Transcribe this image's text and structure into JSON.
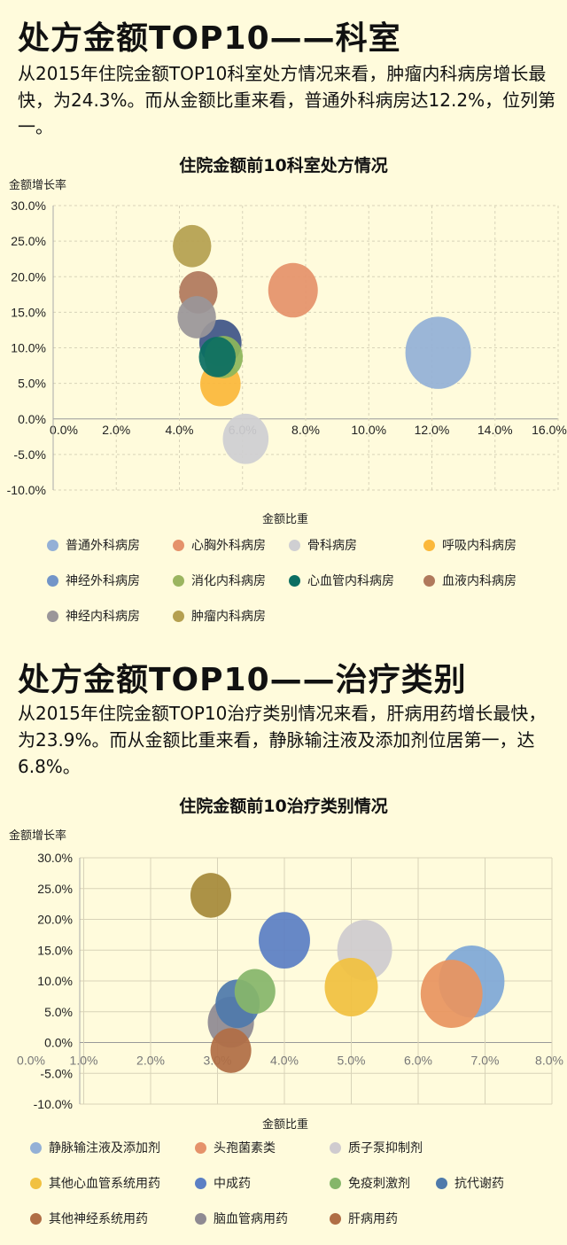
{
  "section1": {
    "title": "处方金额TOP10——科室",
    "paragraph": "从2015年住院金额TOP10科室处方情况来看，肿瘤内科病房增长最快，为24.3%。而从金额比重来看，普通外科病房达12.2%，位列第一。"
  },
  "section2": {
    "title": "处方金额TOP10——治疗类别",
    "paragraph": "从2015年住院金额TOP10治疗类别情况来看，肝病用药增长最快，为23.9%。而从金额比重来看，静脉输注液及添加剂位居第一，达6.8%。"
  },
  "chart_data": [
    {
      "type": "bubble",
      "title": "住院金额前10科室处方情况",
      "xlabel": "金额比重",
      "ylabel": "金额增长率",
      "xlim": [
        0,
        16
      ],
      "ylim": [
        -10,
        30
      ],
      "xticks": [
        "0.0%",
        "2.0%",
        "4.0%",
        "6.0%",
        "8.0%",
        "10.0%",
        "12.0%",
        "14.0%",
        "16.0%"
      ],
      "yticks": [
        "30.0%",
        "25.0%",
        "20.0%",
        "15.0%",
        "10.0%",
        "5.0%",
        "0.0%",
        "-5.0%",
        "-10.0%"
      ],
      "grid": true,
      "legend": "bottom",
      "series": [
        {
          "name": "普通外科病房",
          "x": 12.2,
          "y": 9.3,
          "size": 14,
          "color": "#93b0d6",
          "legend_color": "#93b0d6"
        },
        {
          "name": "心胸外科病房",
          "x": 7.6,
          "y": 18.1,
          "size": 8,
          "color": "#e5926a",
          "legend_color": "#e5926a"
        },
        {
          "name": "骨科病房",
          "x": 6.1,
          "y": -2.8,
          "size": 6.8,
          "color": "#cfcfd2",
          "legend_color": "#cfcfd2"
        },
        {
          "name": "呼吸内科病房",
          "x": 5.3,
          "y": 4.9,
          "size": 5.3,
          "color": "#fbb83a",
          "legend_color": "#fbb83a"
        },
        {
          "name": "神经外科病房",
          "x": 5.3,
          "y": 10.7,
          "size": 5.8,
          "color": "#3f5588",
          "legend_color": "#7295c8"
        },
        {
          "name": "消化内科病房",
          "x": 5.4,
          "y": 8.7,
          "size": 4.8,
          "color": "#8db65a",
          "legend_color": "#9bb560"
        },
        {
          "name": "心血管内科病房",
          "x": 5.2,
          "y": 8.7,
          "size": 4.4,
          "color": "#0b6e62",
          "legend_color": "#0b6e62"
        },
        {
          "name": "血液内科病房",
          "x": 4.6,
          "y": 17.8,
          "size": 4.8,
          "color": "#b0795c",
          "legend_color": "#b0795c"
        },
        {
          "name": "神经内科病房",
          "x": 4.55,
          "y": 14.3,
          "size": 4.8,
          "color": "#9a9699",
          "legend_color": "#9a9699"
        },
        {
          "name": "肿瘤内科病房",
          "x": 4.4,
          "y": 24.3,
          "size": 4.8,
          "color": "#b5a050",
          "legend_color": "#b5a050"
        }
      ]
    },
    {
      "type": "bubble",
      "title": "住院金额前10治疗类别情况",
      "xlabel": "金额比重",
      "ylabel": "金额增长率",
      "xlim": [
        0,
        8
      ],
      "ylim": [
        -10,
        30
      ],
      "xticks": [
        "0.0%",
        "1.0%",
        "2.0%",
        "3.0%",
        "4.0%",
        "5.0%",
        "6.0%",
        "7.0%",
        "8.0%"
      ],
      "yticks": [
        "30.0%",
        "25.0%",
        "20.0%",
        "15.0%",
        "10.0%",
        "5.0%",
        "0.0%",
        "-5.0%",
        "-10.0%"
      ],
      "grid": true,
      "legend": "bottom",
      "series": [
        {
          "name": "静脉输注液及添加剂",
          "x": 6.8,
          "y": 9.9,
          "size": 13.7,
          "color": "#7fa8d6",
          "legend_color": "#93b0d6"
        },
        {
          "name": "头孢菌素类",
          "x": 6.5,
          "y": 7.9,
          "size": 12.2,
          "color": "#e89560",
          "legend_color": "#e5926a"
        },
        {
          "name": "质子泵抑制剂",
          "x": 5.2,
          "y": 15.0,
          "size": 9.6,
          "color": "#cfcbcf",
          "legend_color": "#cfcbcf"
        },
        {
          "name": "其他心血管系统用药",
          "x": 5.0,
          "y": 9.0,
          "size": 9,
          "color": "#f1c140",
          "legend_color": "#f1c140"
        },
        {
          "name": "中成药",
          "x": 4.0,
          "y": 16.6,
          "size": 8.4,
          "color": "#5b7fc4",
          "legend_color": "#5b7fc4"
        },
        {
          "name": "免疫刺激剂",
          "x": 3.56,
          "y": 8.3,
          "size": 5.3,
          "color": "#86b66a",
          "legend_color": "#86b66a"
        },
        {
          "name": "抗代谢药",
          "x": 3.3,
          "y": 6.3,
          "size": 6.2,
          "color": "#4f7aab",
          "legend_color": "#4f7aab"
        },
        {
          "name": "其他神经系统用药",
          "x": 3.2,
          "y": -1.3,
          "size": 5.3,
          "color": "#b06e45",
          "legend_color": "#b06e45"
        },
        {
          "name": "脑血管病用药",
          "x": 3.2,
          "y": 3.3,
          "size": 6.8,
          "color": "#8f8a92",
          "legend_color": "#8f8a92"
        },
        {
          "name": "肝病用药",
          "x": 2.9,
          "y": 23.9,
          "size": 5.3,
          "color": "#a68a3a",
          "legend_color": "#b06e45"
        }
      ]
    }
  ]
}
